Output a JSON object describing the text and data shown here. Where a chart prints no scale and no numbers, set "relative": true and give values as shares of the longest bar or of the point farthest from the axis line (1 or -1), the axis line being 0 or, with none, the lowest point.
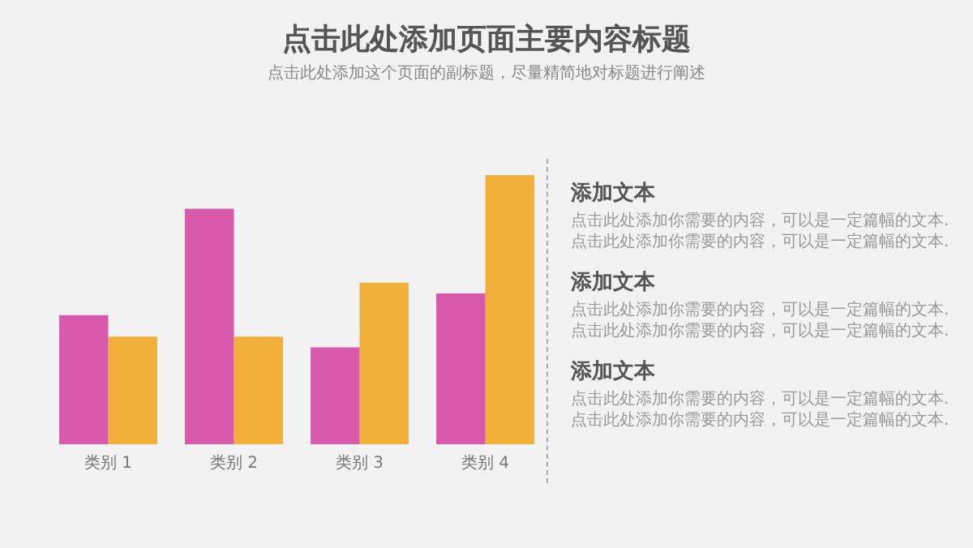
{
  "chart_data": {
    "type": "bar",
    "title": "点击此处添加页面主要内容标题",
    "subtitle": "点击此处添加这个页面的副标题，尽量精简地对标题进行阐述",
    "categories": [
      "类别 1",
      "类别 2",
      "类别 3",
      "类别 4"
    ],
    "relative": true,
    "series": [
      {
        "color": "#d95aad",
        "values": [
          0.48,
          0.875,
          0.36,
          0.56
        ]
      },
      {
        "color": "#f2b03a",
        "values": [
          0.4,
          0.4,
          0.6,
          1
        ]
      }
    ],
    "annotations": [
      "添加文本",
      "点击此处添加你需要的内容，可以是一定篇幅的文本.点击此处添加你需要的内容，可以是一定篇幅的文本.",
      "添加文本",
      "点击此处添加你需要的内容，可以是一定篇幅的文本.点击此处添加你需要的内容，可以是一定篇幅的文本.",
      "添加文本",
      "点击此处添加你需要的内容，可以是一定篇幅的文本.点击此处添加你需要的内容，可以是一定篇幅的文本."
    ],
    "grid": false,
    "legend": false
  }
}
